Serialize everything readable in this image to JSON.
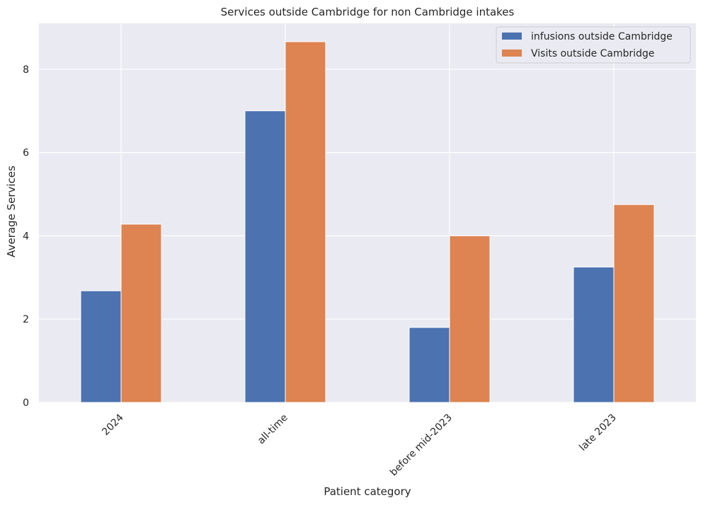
{
  "chart_data": {
    "type": "bar",
    "title": "Services outside Cambridge for non Cambridge intakes",
    "xlabel": "Patient category",
    "ylabel": "Average Services",
    "categories": [
      "2024",
      "all-time",
      "before mid-2023",
      "late 2023"
    ],
    "series": [
      {
        "name": "infusions outside Cambridge",
        "color": "#4c72b0",
        "values": [
          2.68,
          7.0,
          1.8,
          3.25
        ]
      },
      {
        "name": "Visits outside Cambridge",
        "color": "#dd8452",
        "values": [
          4.28,
          8.66,
          4.0,
          4.75
        ]
      }
    ],
    "ylim": [
      0,
      9.1
    ],
    "yticks": [
      0,
      2,
      4,
      6,
      8
    ],
    "grid": true,
    "legend_position": "top-right",
    "background": "#eaeaf2"
  }
}
